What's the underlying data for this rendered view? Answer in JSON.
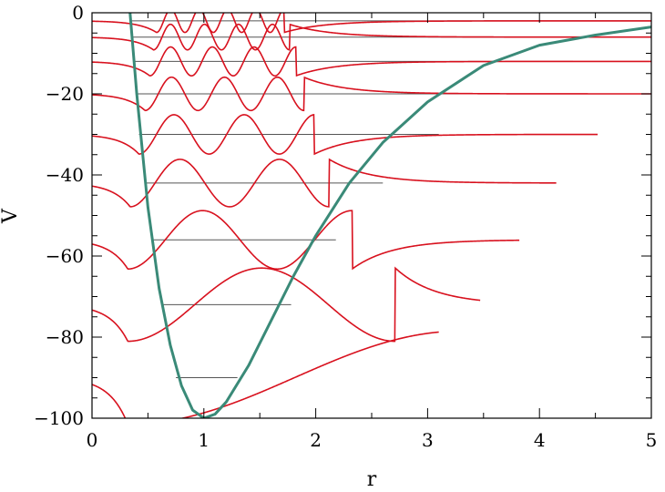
{
  "chart_data": {
    "type": "line",
    "title": "",
    "xlabel": "r",
    "ylabel": "V",
    "xlim": [
      0,
      5
    ],
    "ylim": [
      -100,
      0
    ],
    "grid": false,
    "x_ticks": [
      "0",
      "1",
      "2",
      "3",
      "4",
      "5"
    ],
    "y_ticks": [
      "0",
      "−20",
      "−40",
      "−60",
      "−80",
      "−100"
    ],
    "potential": {
      "color": "#3a8a78",
      "x": [
        0.34,
        0.4,
        0.5,
        0.6,
        0.7,
        0.8,
        0.9,
        1.0,
        1.1,
        1.2,
        1.4,
        1.6,
        1.8,
        2.0,
        2.3,
        2.6,
        3.0,
        3.5,
        4.0,
        4.5,
        5.0
      ],
      "y": [
        0,
        -20,
        -48,
        -68,
        -82,
        -92,
        -98,
        -100,
        -99,
        -96,
        -87,
        -76,
        -65,
        -55,
        -42,
        -32,
        -22,
        -13,
        -8,
        -5.5,
        -3.5
      ]
    },
    "energy_levels": {
      "color": "#555555",
      "values": [
        -90,
        -72,
        -56,
        -42,
        -30,
        -20,
        -12,
        -6,
        -2
      ],
      "r_start": [
        0.75,
        0.62,
        0.55,
        0.47,
        0.42,
        0.39,
        0.37,
        0.35,
        0.35
      ],
      "r_end": [
        1.3,
        1.78,
        2.18,
        2.6,
        3.1,
        3.7,
        4.3,
        5.0,
        5.0
      ]
    },
    "wavefunctions": {
      "color": "#d8111e",
      "baselines": [
        -90,
        -72,
        -56,
        -42,
        -30,
        -20,
        -12,
        -6,
        -2
      ],
      "right_end_r": [
        3.1,
        3.47,
        3.82,
        4.15,
        4.52,
        5.0,
        5.0,
        5.0,
        5.0
      ],
      "nodes": [
        0,
        1,
        2,
        3,
        4,
        5,
        6,
        7,
        8
      ]
    }
  }
}
